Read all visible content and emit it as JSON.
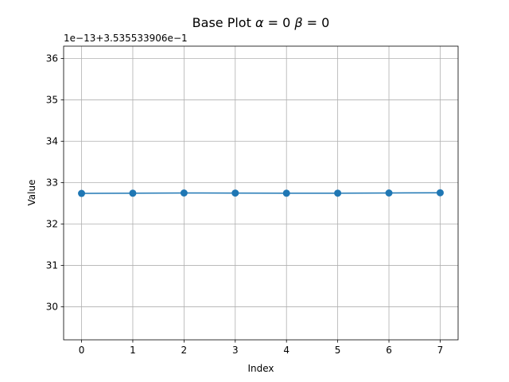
{
  "chart_data": {
    "type": "line",
    "title_prefix": "Base Plot ",
    "title_math": [
      {
        "text": "α",
        "italic": true
      },
      {
        "text": " = 0 ",
        "italic": false
      },
      {
        "text": "β",
        "italic": true
      },
      {
        "text": " = 0",
        "italic": false
      }
    ],
    "xlabel": "Index",
    "ylabel": "Value",
    "offset_label": "1e−13+3.535533906e−1",
    "x": [
      0,
      1,
      2,
      3,
      4,
      5,
      6,
      7
    ],
    "values": [
      32.74,
      32.745,
      32.75,
      32.748,
      32.744,
      32.746,
      32.75,
      32.755
    ],
    "values_unit_note": "y values shown in axis units of 1e-13 above offset 0.3535533906",
    "xticks": [
      "0",
      "1",
      "2",
      "3",
      "4",
      "5",
      "6",
      "7"
    ],
    "yticks": [
      "30",
      "31",
      "32",
      "33",
      "34",
      "35",
      "36"
    ],
    "xlim": [
      -0.35,
      7.35
    ],
    "ylim": [
      29.2,
      36.3
    ],
    "grid": true,
    "marker": "circle",
    "line_color": "#1f77b4",
    "grid_color": "#b0b0b0",
    "legend": "none"
  }
}
